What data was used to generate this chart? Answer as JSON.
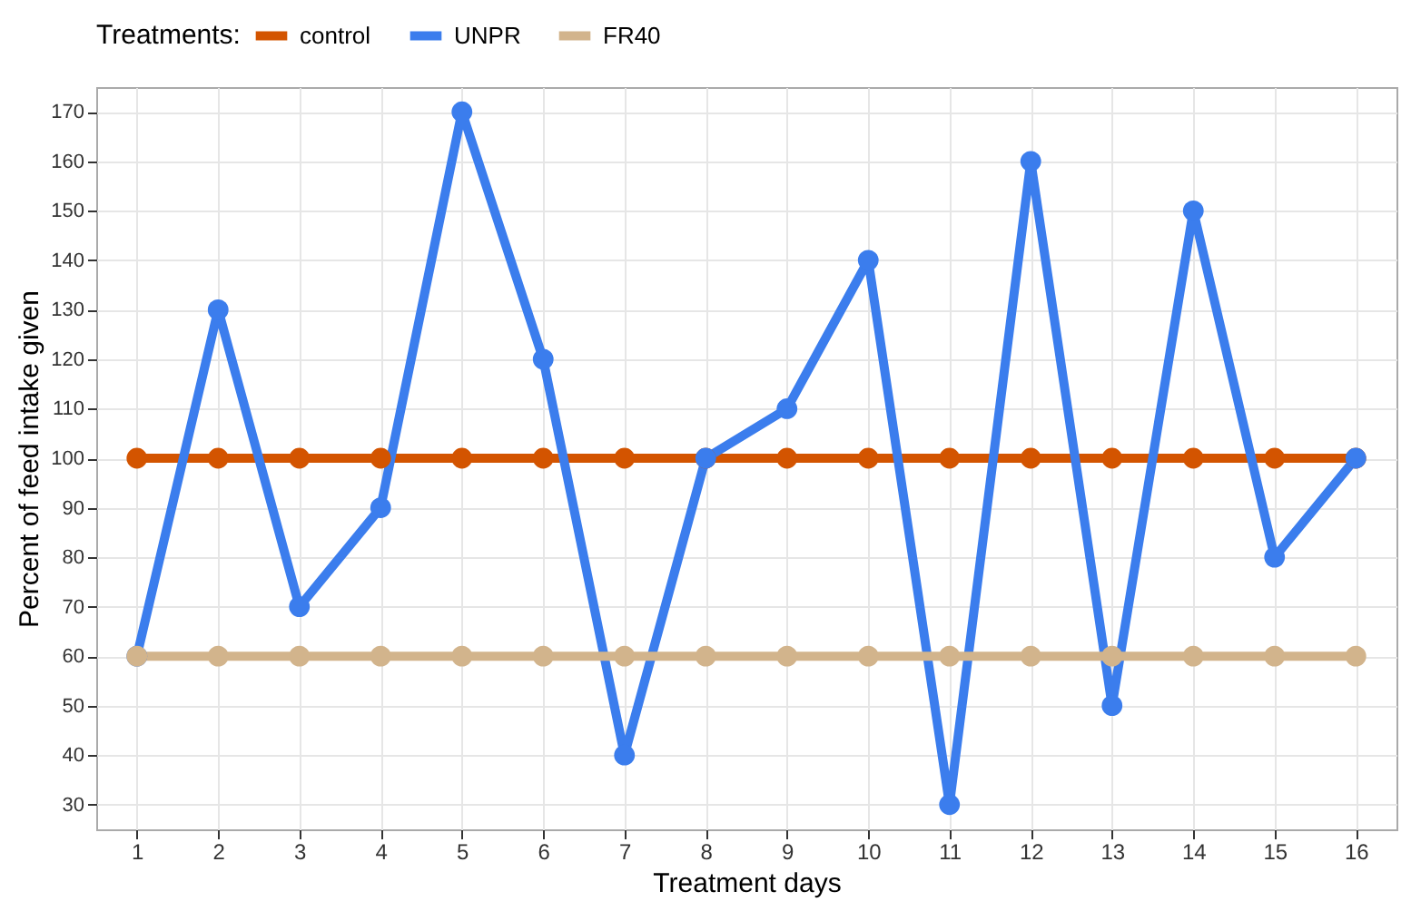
{
  "chart_data": {
    "type": "line",
    "xlabel": "Treatment days",
    "ylabel": "Percent of feed intake given",
    "legend_title": "Treatments:",
    "legend": "top",
    "grid": true,
    "marker": "circle",
    "line_style": "solid",
    "x": [
      1,
      2,
      3,
      4,
      5,
      6,
      7,
      8,
      9,
      10,
      11,
      12,
      13,
      14,
      15,
      16
    ],
    "xlim": [
      0.5,
      16.5
    ],
    "xticks": [
      1,
      2,
      3,
      4,
      5,
      6,
      7,
      8,
      9,
      10,
      11,
      12,
      13,
      14,
      15,
      16
    ],
    "ylim": [
      25,
      175
    ],
    "yticks": [
      30,
      40,
      50,
      60,
      70,
      80,
      90,
      100,
      110,
      120,
      130,
      140,
      150,
      160,
      170
    ],
    "series": [
      {
        "name": "control",
        "color": "#d35400",
        "values": [
          100,
          100,
          100,
          100,
          100,
          100,
          100,
          100,
          100,
          100,
          100,
          100,
          100,
          100,
          100,
          100
        ]
      },
      {
        "name": "UNPR",
        "color": "#3b7ded",
        "values": [
          60,
          130,
          70,
          90,
          170,
          120,
          40,
          100,
          110,
          140,
          30,
          160,
          50,
          150,
          80,
          100
        ]
      },
      {
        "name": "FR40",
        "color": "#d2b48c",
        "values": [
          60,
          60,
          60,
          60,
          60,
          60,
          60,
          60,
          60,
          60,
          60,
          60,
          60,
          60,
          60,
          60
        ]
      }
    ]
  }
}
